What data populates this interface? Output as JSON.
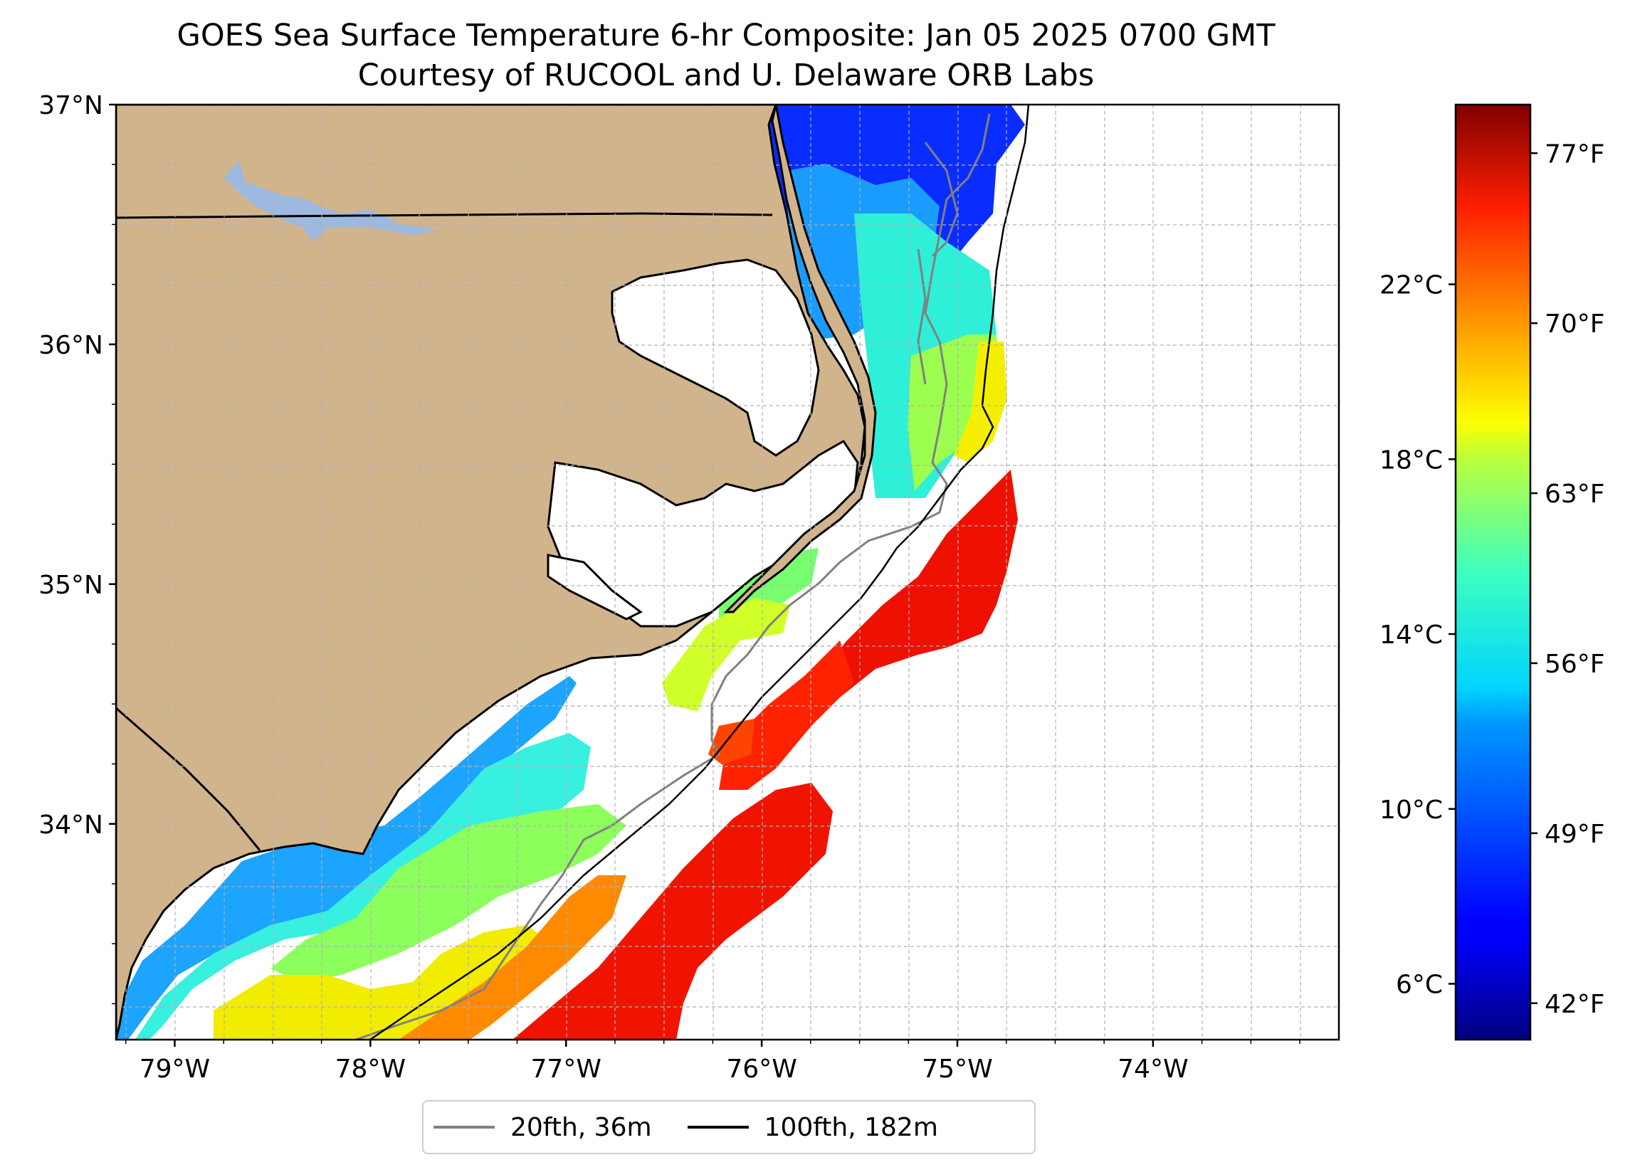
{
  "title": {
    "line1": "GOES Sea Surface Temperature 6-hr Composite: Jan 05 2025 0700 GMT",
    "line2": "Courtesy of RUCOOL and U. Delaware ORB Labs"
  },
  "map": {
    "extent": {
      "lon_min": -79.3,
      "lon_max": -73.05,
      "lat_min": 33.1,
      "lat_max": 37.0
    },
    "lat_ticks": [
      {
        "value": 37,
        "label": "37°N"
      },
      {
        "value": 36,
        "label": "36°N"
      },
      {
        "value": 35,
        "label": "35°N"
      },
      {
        "value": 34,
        "label": "34°N"
      }
    ],
    "lon_ticks": [
      {
        "value": -79,
        "label": "79°W"
      },
      {
        "value": -78,
        "label": "78°W"
      },
      {
        "value": -77,
        "label": "77°W"
      },
      {
        "value": -76,
        "label": "76°W"
      },
      {
        "value": -75,
        "label": "75°W"
      },
      {
        "value": -74,
        "label": "74°W"
      }
    ],
    "land_color": "#d2b48c",
    "lake_color": "#9db9e0",
    "ocean_no_data_color": "#ffffff",
    "grid": true
  },
  "colorbar": {
    "colormap": "jet",
    "fahrenheit_range": [
      40.5,
      79.0
    ],
    "celsius_ticks": [
      {
        "value": 22,
        "label": "22°C"
      },
      {
        "value": 18,
        "label": "18°C"
      },
      {
        "value": 14,
        "label": "14°C"
      },
      {
        "value": 10,
        "label": "10°C"
      },
      {
        "value": 6,
        "label": "6°C"
      }
    ],
    "fahrenheit_ticks": [
      {
        "value": 77,
        "label": "77°F"
      },
      {
        "value": 70,
        "label": "70°F"
      },
      {
        "value": 63,
        "label": "63°F"
      },
      {
        "value": 56,
        "label": "56°F"
      },
      {
        "value": 49,
        "label": "49°F"
      },
      {
        "value": 42,
        "label": "42°F"
      }
    ]
  },
  "legend": {
    "items": [
      {
        "label": "20fth, 36m",
        "color": "#808080"
      },
      {
        "label": "100fth, 182m",
        "color": "#000000"
      }
    ]
  }
}
